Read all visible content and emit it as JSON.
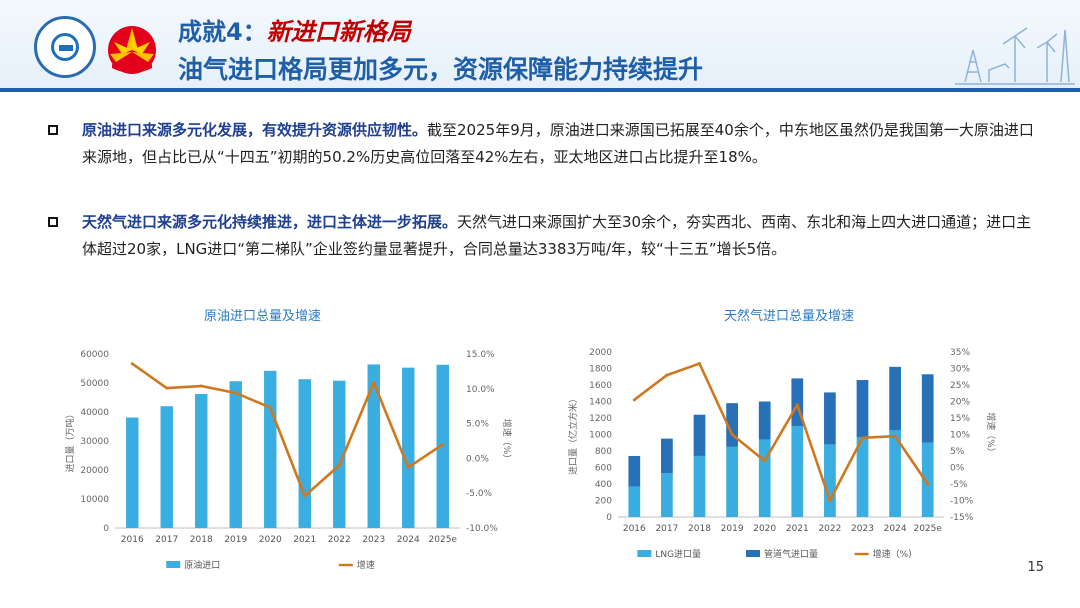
{
  "header": {
    "title_prefix": "成就4：",
    "title_accent": "新进口新格局",
    "subtitle": "油气进口格局更加多元，资源保障能力持续提升"
  },
  "bullets": [
    {
      "bold": "原油进口来源多元化发展，有效提升资源供应韧性。",
      "text": "截至2025年9月，原油进口来源国已拓展至40余个，中东地区虽然仍是我国第一大原油进口来源地，但占比已从“十四五”初期的50.2%历史高位回落至42%左右，亚太地区进口占比提升至18%。"
    },
    {
      "bold": "天然气进口来源多元化持续推进，进口主体进一步拓展。",
      "text": "天然气进口来源国扩大至30余个，夯实西北、西南、东北和海上四大进口通道；进口主体超过20家，LNG进口“第二梯队”企业签约量显著提升，合同总量达3383万吨/年，较“十三五”增长5倍。"
    }
  ],
  "page_number": "15",
  "chart_data": [
    {
      "type": "bar",
      "title": "原油进口总量及增速",
      "categories": [
        "2016",
        "2017",
        "2018",
        "2019",
        "2020",
        "2021",
        "2022",
        "2023",
        "2024",
        "2025e"
      ],
      "series": [
        {
          "name": "原油进口",
          "type": "bar",
          "axis": "left",
          "color": "#3aaee0",
          "values": [
            38100,
            42000,
            46200,
            50600,
            54200,
            51300,
            50800,
            56400,
            55300,
            56300
          ]
        },
        {
          "name": "增速",
          "type": "line",
          "axis": "right",
          "color": "#d0781e",
          "values": [
            13.6,
            10.1,
            10.4,
            9.4,
            7.3,
            -5.4,
            -1.0,
            10.9,
            -1.3,
            2.0
          ]
        }
      ],
      "ylabel": "进口量（万吨）",
      "y2label": "增速（%）",
      "ylim": [
        0,
        60000
      ],
      "y2lim": [
        -10,
        15
      ],
      "yticks": [
        "0",
        "10000",
        "20000",
        "30000",
        "40000",
        "50000",
        "60000"
      ],
      "y2ticks": [
        "-10.0%",
        "-5.0%",
        "0.0%",
        "5.0%",
        "10.0%",
        "15.0%"
      ],
      "grid": false,
      "legend_position": "bottom"
    },
    {
      "type": "bar",
      "title": "天然气进口总量及增速",
      "categories": [
        "2016",
        "2017",
        "2018",
        "2019",
        "2020",
        "2021",
        "2022",
        "2023",
        "2024",
        "2025e"
      ],
      "series": [
        {
          "name": "LNG进口量",
          "type": "bar",
          "axis": "left",
          "color": "#3aaee0",
          "values": [
            370,
            530,
            740,
            850,
            940,
            1100,
            880,
            970,
            1050,
            900
          ]
        },
        {
          "name": "管道气进口量",
          "type": "bar",
          "axis": "left",
          "color": "#2870b8",
          "values": [
            370,
            420,
            500,
            530,
            460,
            580,
            630,
            690,
            770,
            830
          ]
        },
        {
          "name": "增速（%）",
          "type": "line",
          "axis": "right",
          "color": "#d0781e",
          "values": [
            20.5,
            28.0,
            31.5,
            10.0,
            2.0,
            19.0,
            -10.0,
            9.0,
            9.5,
            -5.0
          ]
        }
      ],
      "ylabel": "进口量（亿立方米）",
      "y2label": "增速（%）",
      "ylim": [
        0,
        2000
      ],
      "y2lim": [
        -15,
        35
      ],
      "yticks": [
        "0",
        "200",
        "400",
        "600",
        "800",
        "1000",
        "1200",
        "1400",
        "1600",
        "1800",
        "2000"
      ],
      "y2ticks": [
        "-15%",
        "-10%",
        "-5%",
        "0%",
        "5%",
        "10%",
        "15%",
        "20%",
        "25%",
        "30%",
        "35%"
      ],
      "stacked": true,
      "grid": false,
      "legend_position": "bottom"
    }
  ]
}
